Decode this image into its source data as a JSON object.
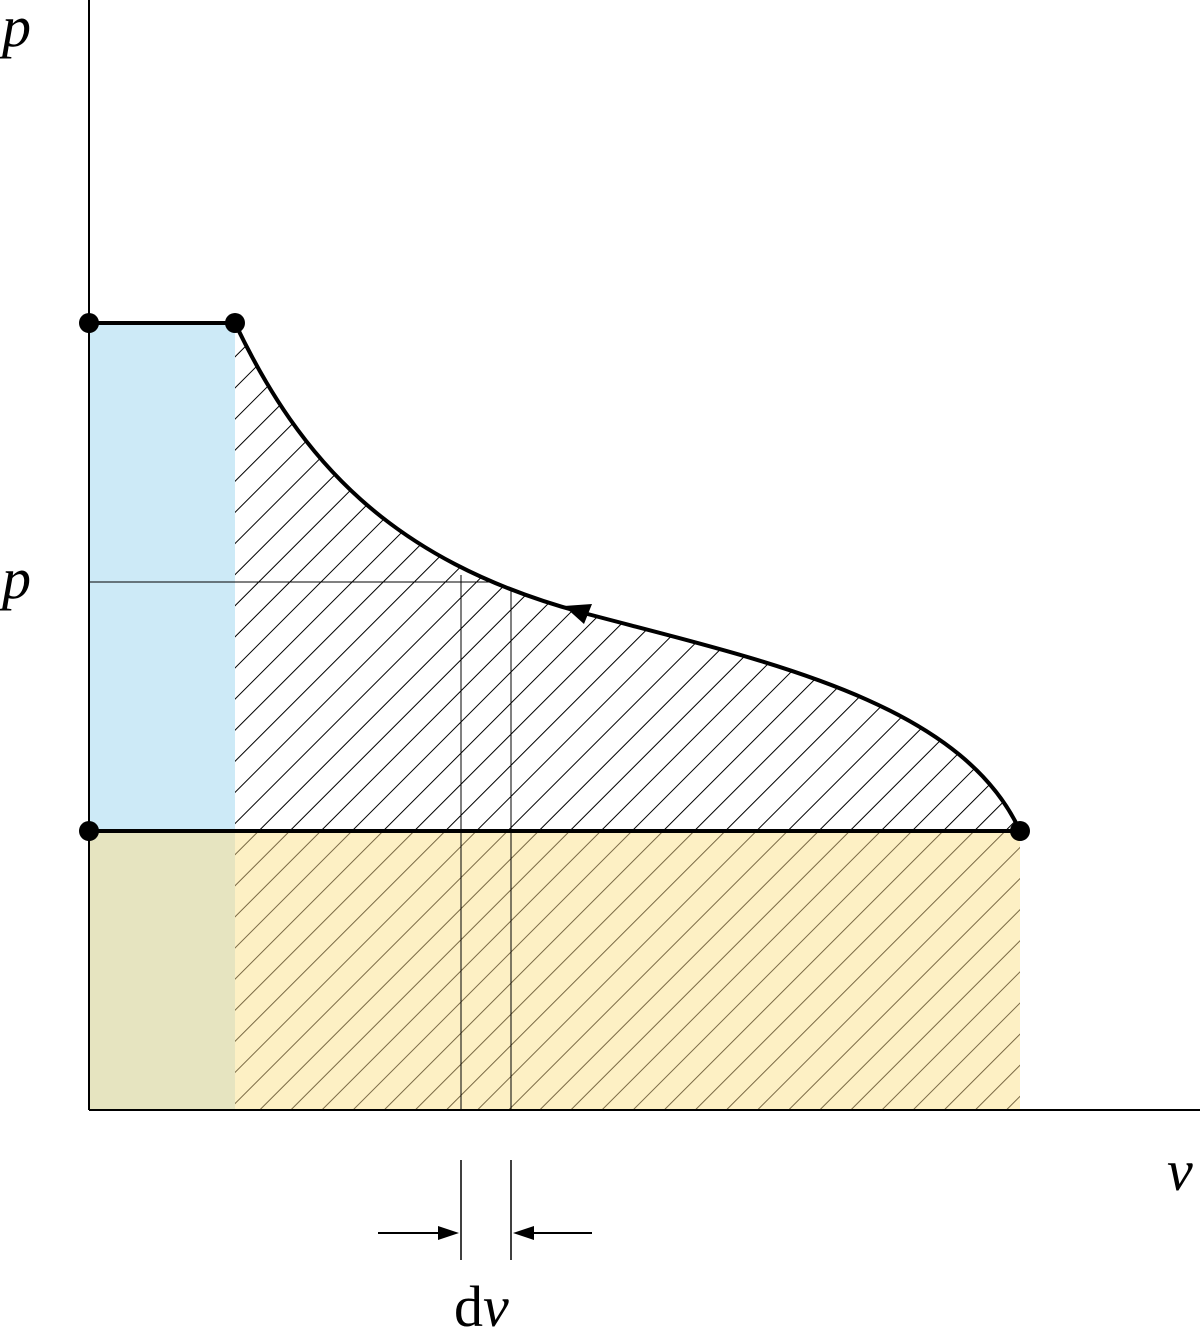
{
  "labels": {
    "y_axis": "p",
    "x_axis": "v",
    "mid_pressure": "p",
    "dv_d": "d",
    "dv_v": "v"
  },
  "colors": {
    "blue_region": "#cdeaf7",
    "tan_region": "#fdf0c4",
    "overlap_region": "#e6e4c0",
    "hatch_black": "#000000",
    "hatch_brown": "#7a6a45",
    "line": "#000000"
  },
  "icons": {
    "dv_left_arrow": "right-arrow",
    "dv_right_arrow": "left-arrow",
    "curve_direction": "arrowhead-up-left"
  }
}
